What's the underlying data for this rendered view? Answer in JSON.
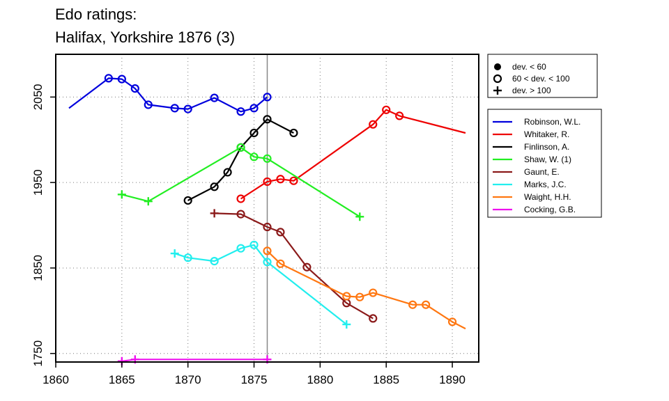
{
  "chart_data": {
    "type": "line",
    "title": "Edo ratings:",
    "subtitle": "Halifax, Yorkshire 1876 (3)",
    "xlabel": "",
    "ylabel": "",
    "xlim": [
      1860,
      1892
    ],
    "ylim": [
      1740,
      2100
    ],
    "x_ticks": [
      1860,
      1865,
      1870,
      1875,
      1880,
      1885,
      1890
    ],
    "y_ticks": [
      1750,
      1850,
      1950,
      2050
    ],
    "grid": "dotted",
    "reference_line_x": 1876,
    "deviation_legend": [
      {
        "marker": "filled-circle",
        "label": "dev. < 60"
      },
      {
        "marker": "open-circle",
        "label": "60 < dev. < 100"
      },
      {
        "marker": "plus",
        "label": "dev. > 100"
      }
    ],
    "series": [
      {
        "name": "Robinson, W.L.",
        "color": "#0000dd",
        "points": [
          {
            "x": 1861,
            "y": 2037,
            "m": "none"
          },
          {
            "x": 1864,
            "y": 2072,
            "m": "circle"
          },
          {
            "x": 1865,
            "y": 2071,
            "m": "circle"
          },
          {
            "x": 1866,
            "y": 2060,
            "m": "circle"
          },
          {
            "x": 1867,
            "y": 2041,
            "m": "circle"
          },
          {
            "x": 1869,
            "y": 2037,
            "m": "circle"
          },
          {
            "x": 1870,
            "y": 2036,
            "m": "circle"
          },
          {
            "x": 1872,
            "y": 2049,
            "m": "circle"
          },
          {
            "x": 1874,
            "y": 2033,
            "m": "circle"
          },
          {
            "x": 1875,
            "y": 2037,
            "m": "circle"
          },
          {
            "x": 1876,
            "y": 2050,
            "m": "circle"
          }
        ]
      },
      {
        "name": "Whitaker, R.",
        "color": "#ee0000",
        "points": [
          {
            "x": 1874,
            "y": 1931,
            "m": "circle"
          },
          {
            "x": 1876,
            "y": 1951,
            "m": "circle"
          },
          {
            "x": 1877,
            "y": 1954,
            "m": "circle"
          },
          {
            "x": 1878,
            "y": 1952,
            "m": "circle"
          },
          {
            "x": 1884,
            "y": 2018,
            "m": "circle"
          },
          {
            "x": 1885,
            "y": 2035,
            "m": "circle"
          },
          {
            "x": 1886,
            "y": 2028,
            "m": "circle"
          },
          {
            "x": 1891,
            "y": 2008,
            "m": "none"
          }
        ]
      },
      {
        "name": "Finlinson, A.",
        "color": "#000000",
        "points": [
          {
            "x": 1870,
            "y": 1929,
            "m": "circle"
          },
          {
            "x": 1872,
            "y": 1945,
            "m": "circle"
          },
          {
            "x": 1873,
            "y": 1962,
            "m": "circle"
          },
          {
            "x": 1874,
            "y": 1991,
            "m": "circle"
          },
          {
            "x": 1875,
            "y": 2008,
            "m": "circle"
          },
          {
            "x": 1876,
            "y": 2024,
            "m": "circle"
          },
          {
            "x": 1878,
            "y": 2008,
            "m": "circle"
          }
        ]
      },
      {
        "name": "Shaw, W. (1)",
        "color": "#22ee22",
        "points": [
          {
            "x": 1865,
            "y": 1936,
            "m": "plus"
          },
          {
            "x": 1867,
            "y": 1928,
            "m": "plus"
          },
          {
            "x": 1874,
            "y": 1991,
            "m": "circle"
          },
          {
            "x": 1875,
            "y": 1980,
            "m": "circle"
          },
          {
            "x": 1876,
            "y": 1978,
            "m": "circle"
          },
          {
            "x": 1883,
            "y": 1910,
            "m": "plus"
          }
        ]
      },
      {
        "name": "Gaunt, E.",
        "color": "#8b1a1a",
        "points": [
          {
            "x": 1872,
            "y": 1914,
            "m": "plus"
          },
          {
            "x": 1874,
            "y": 1913,
            "m": "circle"
          },
          {
            "x": 1876,
            "y": 1898,
            "m": "circle"
          },
          {
            "x": 1877,
            "y": 1892,
            "m": "circle"
          },
          {
            "x": 1879,
            "y": 1851,
            "m": "circle"
          },
          {
            "x": 1882,
            "y": 1809,
            "m": "circle"
          },
          {
            "x": 1884,
            "y": 1791,
            "m": "circle"
          }
        ]
      },
      {
        "name": "Marks, J.C.",
        "color": "#22eeee",
        "points": [
          {
            "x": 1869,
            "y": 1867,
            "m": "plus"
          },
          {
            "x": 1870,
            "y": 1862,
            "m": "circle"
          },
          {
            "x": 1872,
            "y": 1858,
            "m": "circle"
          },
          {
            "x": 1874,
            "y": 1873,
            "m": "circle"
          },
          {
            "x": 1875,
            "y": 1877,
            "m": "circle"
          },
          {
            "x": 1876,
            "y": 1857,
            "m": "circle"
          },
          {
            "x": 1882,
            "y": 1784,
            "m": "plus"
          }
        ]
      },
      {
        "name": "Waight, H.H.",
        "color": "#ff7711",
        "points": [
          {
            "x": 1876,
            "y": 1870,
            "m": "circle"
          },
          {
            "x": 1877,
            "y": 1855,
            "m": "circle"
          },
          {
            "x": 1882,
            "y": 1817,
            "m": "circle"
          },
          {
            "x": 1883,
            "y": 1816,
            "m": "circle"
          },
          {
            "x": 1884,
            "y": 1821,
            "m": "circle"
          },
          {
            "x": 1887,
            "y": 1807,
            "m": "circle"
          },
          {
            "x": 1888,
            "y": 1807,
            "m": "circle"
          },
          {
            "x": 1890,
            "y": 1787,
            "m": "circle"
          },
          {
            "x": 1891,
            "y": 1779,
            "m": "none"
          }
        ]
      },
      {
        "name": "Cocking, G.B.",
        "color": "#ee11ee",
        "points": [
          {
            "x": 1865,
            "y": 1741,
            "m": "plus"
          },
          {
            "x": 1866,
            "y": 1743,
            "m": "plus"
          },
          {
            "x": 1876,
            "y": 1743,
            "m": "plus"
          }
        ]
      }
    ]
  }
}
